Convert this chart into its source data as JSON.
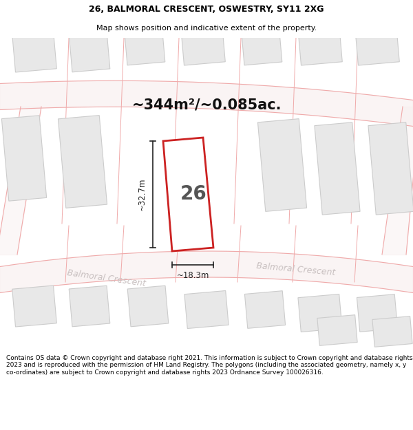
{
  "title_line1": "26, BALMORAL CRESCENT, OSWESTRY, SY11 2XG",
  "title_line2": "Map shows position and indicative extent of the property.",
  "area_text": "~344m²/~0.085ac.",
  "plot_number": "26",
  "dim_width": "~18.3m",
  "dim_height": "~32.7m",
  "road_label_lower": "Balmoral Crescent",
  "road_label_upper": "Balmoral Crescent",
  "footer_text": "Contains OS data © Crown copyright and database right 2021. This information is subject to Crown copyright and database rights 2023 and is reproduced with the permission of HM Land Registry. The polygons (including the associated geometry, namely x, y co-ordinates) are subject to Crown copyright and database rights 2023 Ordnance Survey 100026316.",
  "map_bg": "#ffffff",
  "plot_fill": "#ffffff",
  "plot_edge": "#cc2222",
  "neighbor_fill": "#e8e8e8",
  "neighbor_edge": "#cccccc",
  "road_line_color": "#f0aaaa",
  "road_fill_color": "#f8f0f0",
  "dim_color": "#222222",
  "text_color": "#000000",
  "road_text_color": "#c8c0c0",
  "area_text_color": "#111111",
  "footer_color": "#000000",
  "title_color": "#000000"
}
